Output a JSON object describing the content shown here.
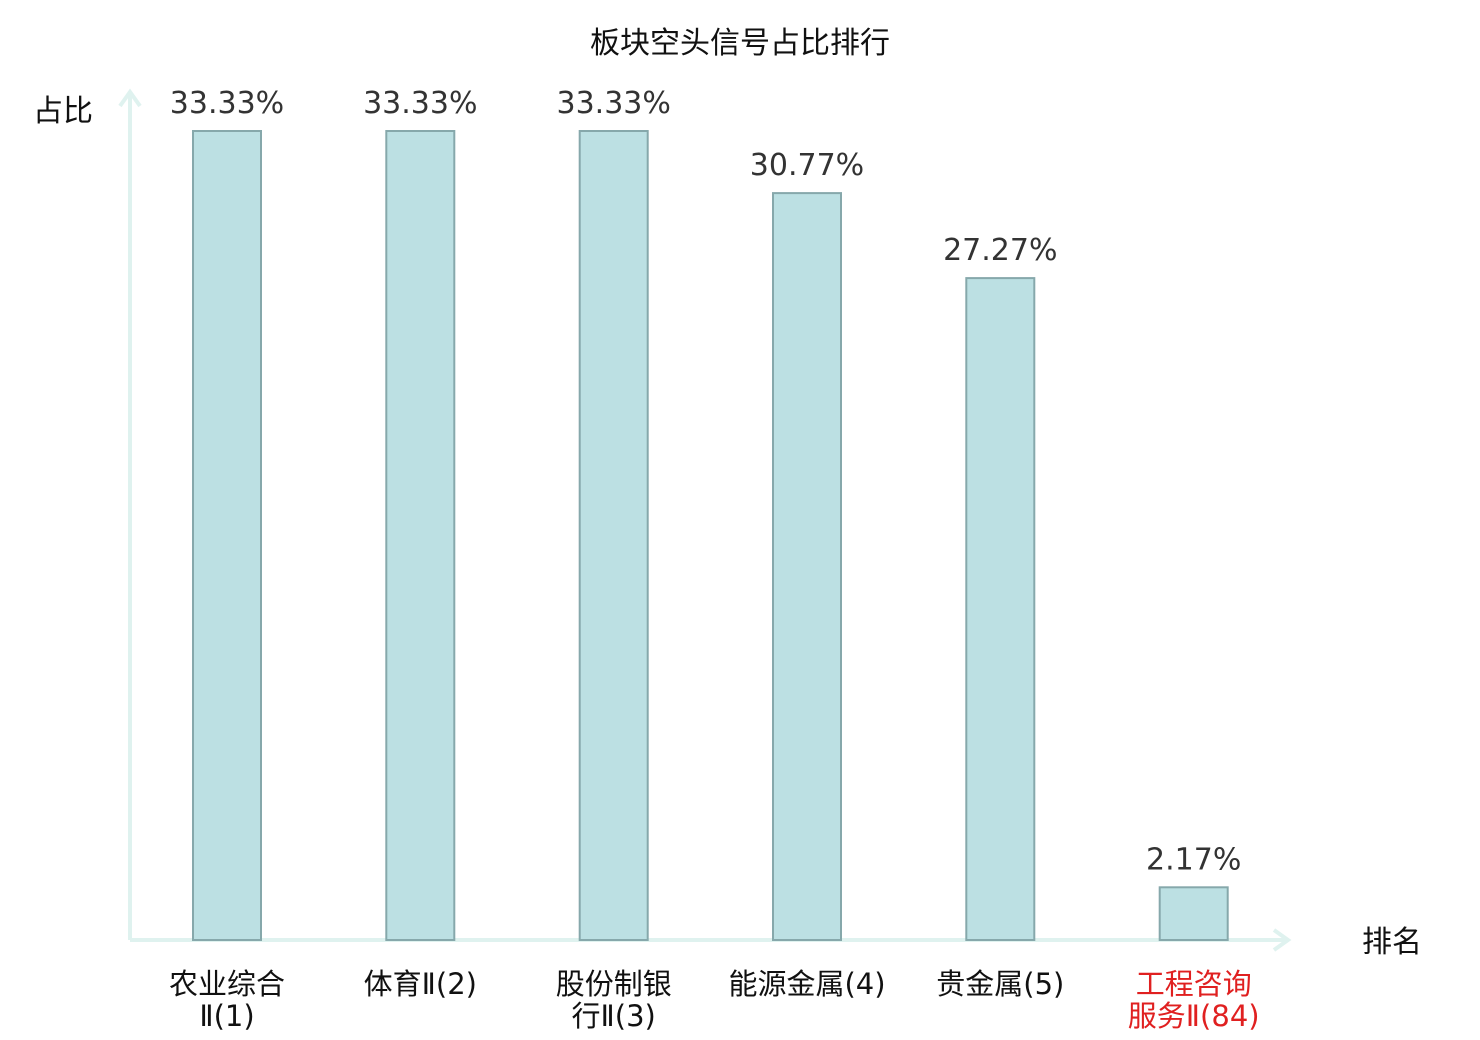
{
  "chart_data": {
    "type": "bar",
    "title": "板块空头信号占比排行",
    "ylabel": "占比",
    "xlabel": "排名",
    "categories": [
      [
        "农业综合",
        "Ⅱ(1)"
      ],
      [
        "体育Ⅱ(2)"
      ],
      [
        "股份制银",
        "行Ⅱ(3)"
      ],
      [
        "能源金属(4)"
      ],
      [
        "贵金属(5)"
      ],
      [
        "工程咨询",
        "服务Ⅱ(84)"
      ]
    ],
    "values": [
      33.33,
      33.33,
      33.33,
      30.77,
      27.27,
      2.17
    ],
    "value_labels": [
      "33.33%",
      "33.33%",
      "33.33%",
      "30.77%",
      "27.27%",
      "2.17%"
    ],
    "highlight_index": 5,
    "ylim": [
      0,
      33.33
    ],
    "grid": false,
    "colors": {
      "bar_fill": "#bce0e3",
      "bar_stroke": "#86a8ab",
      "axis": "#dff2ef",
      "highlight_text": "#e02020",
      "normal_text": "#111111"
    }
  }
}
